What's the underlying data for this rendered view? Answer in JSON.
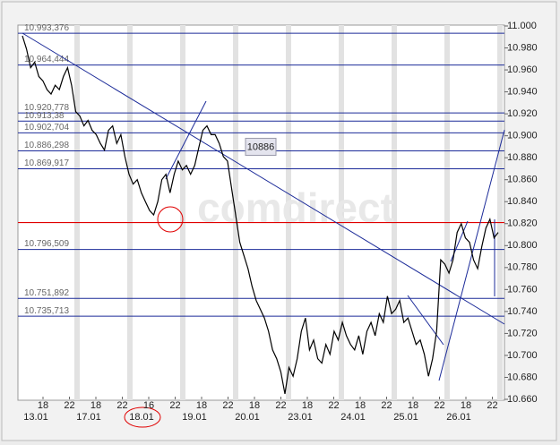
{
  "chart_data": {
    "type": "line",
    "color": "#000000",
    "values": [
      10.991,
      10.979,
      10.962,
      10.967,
      10.954,
      10.95,
      10.942,
      10.938,
      10.946,
      10.942,
      10.954,
      10.962,
      10.946,
      10.922,
      10.918,
      10.909,
      10.914,
      10.905,
      10.901,
      10.893,
      10.887,
      10.905,
      10.909,
      10.893,
      10.901,
      10.881,
      10.865,
      10.856,
      10.86,
      10.848,
      10.84,
      10.832,
      10.828,
      10.84,
      10.86,
      10.865,
      10.848,
      10.865,
      10.877,
      10.869,
      10.873,
      10.865,
      10.873,
      10.889,
      10.905,
      10.909,
      10.901,
      10.901,
      10.893,
      10.881,
      10.877,
      10.852,
      10.828,
      10.803,
      10.791,
      10.779,
      10.763,
      10.75,
      10.742,
      10.734,
      10.722,
      10.705,
      10.697,
      10.685,
      10.665,
      10.689,
      10.681,
      10.697,
      10.722,
      10.734,
      10.705,
      10.714,
      10.697,
      10.693,
      10.71,
      10.701,
      10.722,
      10.714,
      10.73,
      10.718,
      10.71,
      10.705,
      10.718,
      10.701,
      10.722,
      10.73,
      10.718,
      10.738,
      10.73,
      10.754,
      10.738,
      10.742,
      10.75,
      10.73,
      10.734,
      10.722,
      10.71,
      10.714,
      10.701,
      10.681,
      10.697,
      10.722,
      10.787,
      10.783,
      10.775,
      10.787,
      10.812,
      10.82,
      10.807,
      10.803,
      10.787,
      10.779,
      10.799,
      10.816,
      10.824,
      10.807,
      10.812
    ],
    "ylim": [
      10.66,
      11.0
    ],
    "yticks": [
      {
        "value": 11.0,
        "label": "11.000"
      },
      {
        "value": 10.98,
        "label": "10.980"
      },
      {
        "value": 10.96,
        "label": "10.960"
      },
      {
        "value": 10.94,
        "label": "10.940"
      },
      {
        "value": 10.92,
        "label": "10.920"
      },
      {
        "value": 10.9,
        "label": "10.900"
      },
      {
        "value": 10.88,
        "label": "10.880"
      },
      {
        "value": 10.86,
        "label": "10.860"
      },
      {
        "value": 10.84,
        "label": "10.840"
      },
      {
        "value": 10.82,
        "label": "10.820"
      },
      {
        "value": 10.8,
        "label": "10.800"
      },
      {
        "value": 10.78,
        "label": "10.780"
      },
      {
        "value": 10.76,
        "label": "10.760"
      },
      {
        "value": 10.74,
        "label": "10.740"
      },
      {
        "value": 10.72,
        "label": "10.720"
      },
      {
        "value": 10.7,
        "label": "10.700"
      },
      {
        "value": 10.68,
        "label": "10.680"
      },
      {
        "value": 10.66,
        "label": "10.660"
      }
    ],
    "levels": [
      {
        "value": 10.993376,
        "label": "10.993,376"
      },
      {
        "value": 10.964444,
        "label": "10.964,444"
      },
      {
        "value": 10.920778,
        "label": "10.920,778"
      },
      {
        "value": 10.91338,
        "label": "10.913,38"
      },
      {
        "value": 10.902704,
        "label": "10.902,704"
      },
      {
        "value": 10.886298,
        "label": "10.886,298"
      },
      {
        "value": 10.869917,
        "label": "10.869,917"
      },
      {
        "value": 10.796509,
        "label": "10.796,509"
      },
      {
        "value": 10.751892,
        "label": "10.751,892"
      },
      {
        "value": 10.735713,
        "label": "10.735,713"
      }
    ],
    "level_color": "#1c2b99",
    "highlight_level": 10.821,
    "highlight_color": "#e00000",
    "annotation": "10886",
    "hour_labels": [
      "18",
      "22",
      "18",
      "22",
      "16",
      "22",
      "18",
      "22",
      "18",
      "22",
      "18",
      "22",
      "18",
      "22",
      "18",
      "22",
      "18",
      "22"
    ],
    "date_labels": [
      "13.01",
      "17.01",
      "18.01",
      "19.01",
      "20.01",
      "23.01",
      "24.01",
      "25.01",
      "26.01"
    ],
    "watermark": "comdirect"
  }
}
